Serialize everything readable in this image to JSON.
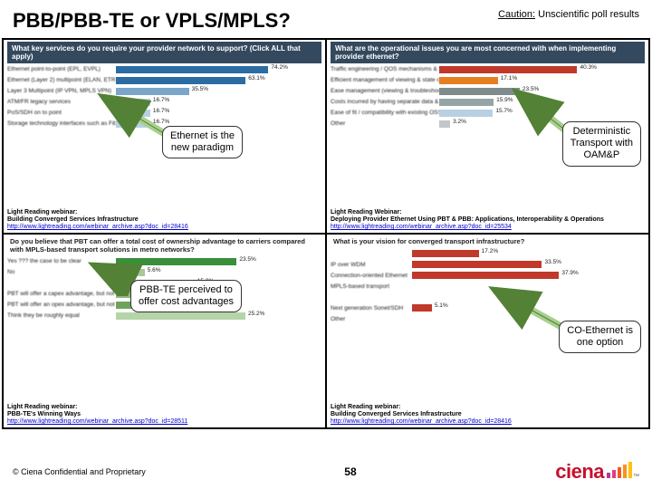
{
  "title": "PBB/PBB-TE or VPLS/MPLS?",
  "caution_label": "Caution:",
  "caution_text": " Unscientific poll results",
  "callouts": {
    "c1": "Ethernet is the\nnew paradigm",
    "c2": "Deterministic\nTransport with\nOAM&P",
    "c3": "PBB-TE perceived to\noffer cost advantages",
    "c4": "CO-Ethernet is\none option"
  },
  "panels": {
    "tl": {
      "header": "What key services do you require your provider network to support? (Click ALL that apply)",
      "source_t": "Light Reading webinar:",
      "source_s": "Building Converged Services Infrastructure",
      "source_u": "http://www.lightreading.com/webinar_archive.asp?doc_id=28416",
      "bars": [
        {
          "label": "Ethernet point-to-point (EPL, EVPL)",
          "pct": 74.2,
          "color": "#2b6ca3"
        },
        {
          "label": "Ethernet (Layer 2) multipoint (ELAN, ETREE)",
          "pct": 63.1,
          "color": "#2b6ca3"
        },
        {
          "label": "Layer 3 Multipoint (IP VPN, MPLS VPN)",
          "pct": 35.5,
          "color": "#7aa6c9"
        },
        {
          "label": "ATM/FR legacy services",
          "pct": 16.7,
          "color": "#b8d0e2"
        },
        {
          "label": "PoS/SDH on to point",
          "pct": 16.7,
          "color": "#b8d0e2"
        },
        {
          "label": "Storage technology interfaces such as Fiber Channel",
          "pct": 16.7,
          "color": "#b8d0e2"
        }
      ]
    },
    "tr": {
      "header": "What are the operational issues you are most concerned with when implementing provider ethernet?",
      "source_t": "Light Reading Webinar:",
      "source_s": "Deploying Provider Ethernet Using PBT & PBB: Applications, Interoperability & Operations",
      "source_u": "http://www.lightreading.com/webinar_archive.asp?doc_id=25534",
      "bars": [
        {
          "label": "Traffic engineering / QOS mechanisms & their interaction",
          "pct": 40.3,
          "color": "#c0392b"
        },
        {
          "label": "Efficient management of viewing & state of provisioning",
          "pct": 17.1,
          "color": "#e67e22"
        },
        {
          "label": "Ease management (viewing & troubleshooting) of service",
          "pct": 23.5,
          "color": "#7f8c8d"
        },
        {
          "label": "Costs incurred by having separate data & transport operation teams",
          "pct": 15.9,
          "color": "#95a5a6"
        },
        {
          "label": "Ease of fit / compatibility with existing OSS",
          "pct": 15.7,
          "color": "#b8d0e2"
        },
        {
          "label": "Other",
          "pct": 3.2,
          "color": "#c0c6c9"
        }
      ]
    },
    "bl": {
      "header": "Do you believe that PBT can offer a total cost of ownership advantage to carriers compared with MPLS-based transport solutions in metro networks?",
      "source_t": "Light Reading webinar:",
      "source_s": "PBB-TE's Winning Ways",
      "source_u": "http://www.lightreading.com/webinar_archive.asp?doc_id=28511",
      "bars": [
        {
          "label": "Yes ??? the case to be clear",
          "pct": 23.5,
          "color": "#3a8f3a"
        },
        {
          "label": "No",
          "pct": 5.6,
          "color": "#a8c89a"
        },
        {
          "label": "",
          "pct": 15.3,
          "color": "#ccc"
        },
        {
          "label": "PBT will offer a capex advantage, but not an opex advantage",
          "pct": 14.2,
          "color": "#8fb77f"
        },
        {
          "label": "PBT will offer an opex advantage, but not a capex advantage",
          "pct": 16.3,
          "color": "#6fa35d"
        },
        {
          "label": "Think they be roughly equal",
          "pct": 25.2,
          "color": "#b5d4a8"
        }
      ]
    },
    "br": {
      "header": "What is your vision for converged transport infrastructure?",
      "source_t": "Light Reading webinar:",
      "source_s": "Building Converged Services Infrastructure",
      "source_u": "http://www.lightreading.com/webinar_archive.asp?doc_id=28416",
      "bars": [
        {
          "label": "",
          "pct": 17.2,
          "color": "#c0392b"
        },
        {
          "label": "IP over WDM",
          "pct": 33.5,
          "color": "#c0392b"
        },
        {
          "label": "Connection-oriented Ethernet",
          "pct": 37.9,
          "color": "#c0392b"
        },
        {
          "label": "MPLS-based transport",
          "pct": 0.0,
          "color": "#c0392b"
        },
        {
          "label": "",
          "pct": 0.0,
          "color": "#c0392b"
        },
        {
          "label": "Next generation Sonet/SDH",
          "pct": 5.1,
          "color": "#c0392b"
        },
        {
          "label": "Other",
          "pct": 0,
          "color": "#c0392b"
        }
      ]
    }
  },
  "footer": {
    "copyright": "© Ciena Confidential and Proprietary",
    "page": "58"
  },
  "colors": {
    "arrow_fill": "#a8d08d",
    "arrow_stroke": "#538135",
    "ciena_red": "#c8102e",
    "ciena_bars": [
      "#b53a8e",
      "#e03c8a",
      "#f15a24",
      "#f7941d",
      "#ffc20e"
    ]
  }
}
